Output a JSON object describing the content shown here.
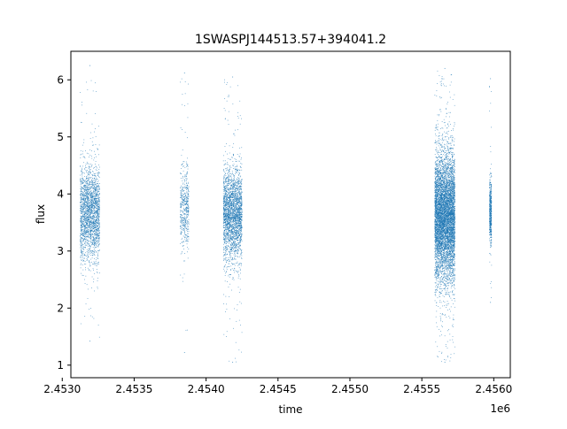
{
  "chart_data": {
    "type": "scatter",
    "title": "1SWASPJ144513.57+394041.2",
    "xlabel": "time",
    "ylabel": "flux",
    "x_offset_label": "1e6",
    "xlim": [
      2453060,
      2456115
    ],
    "ylim": [
      0.78,
      6.5
    ],
    "x_ticks": [
      {
        "value": 2453000,
        "label": "2.4530"
      },
      {
        "value": 2453500,
        "label": "2.4535"
      },
      {
        "value": 2454000,
        "label": "2.4540"
      },
      {
        "value": 2454500,
        "label": "2.4545"
      },
      {
        "value": 2455000,
        "label": "2.4550"
      },
      {
        "value": 2455500,
        "label": "2.4555"
      },
      {
        "value": 2456000,
        "label": "2.4560"
      }
    ],
    "y_ticks": [
      {
        "value": 1,
        "label": "1"
      },
      {
        "value": 2,
        "label": "2"
      },
      {
        "value": 3,
        "label": "3"
      },
      {
        "value": 4,
        "label": "4"
      },
      {
        "value": 5,
        "label": "5"
      },
      {
        "value": 6,
        "label": "6"
      }
    ],
    "grid": false,
    "legend": "none",
    "point_color": "#1f77b4",
    "observing_seasons": [
      {
        "x_range": [
          2453125,
          2453260
        ],
        "center": 3.65,
        "spread": 0.42,
        "min": 1.42,
        "max": 6.25,
        "density": 2200
      },
      {
        "x_range": [
          2453820,
          2453880
        ],
        "center": 3.75,
        "spread": 0.38,
        "min": 1.22,
        "max": 6.12,
        "density": 500
      },
      {
        "x_range": [
          2454120,
          2454250
        ],
        "center": 3.65,
        "spread": 0.4,
        "min": 1.05,
        "max": 6.05,
        "density": 2600
      },
      {
        "x_range": [
          2455590,
          2455730
        ],
        "center": 3.6,
        "spread": 0.55,
        "min": 1.05,
        "max": 6.2,
        "density": 6500
      },
      {
        "x_range": [
          2455970,
          2455985
        ],
        "center": 3.7,
        "spread": 0.3,
        "min": 2.1,
        "max": 6.02,
        "density": 500
      }
    ]
  }
}
